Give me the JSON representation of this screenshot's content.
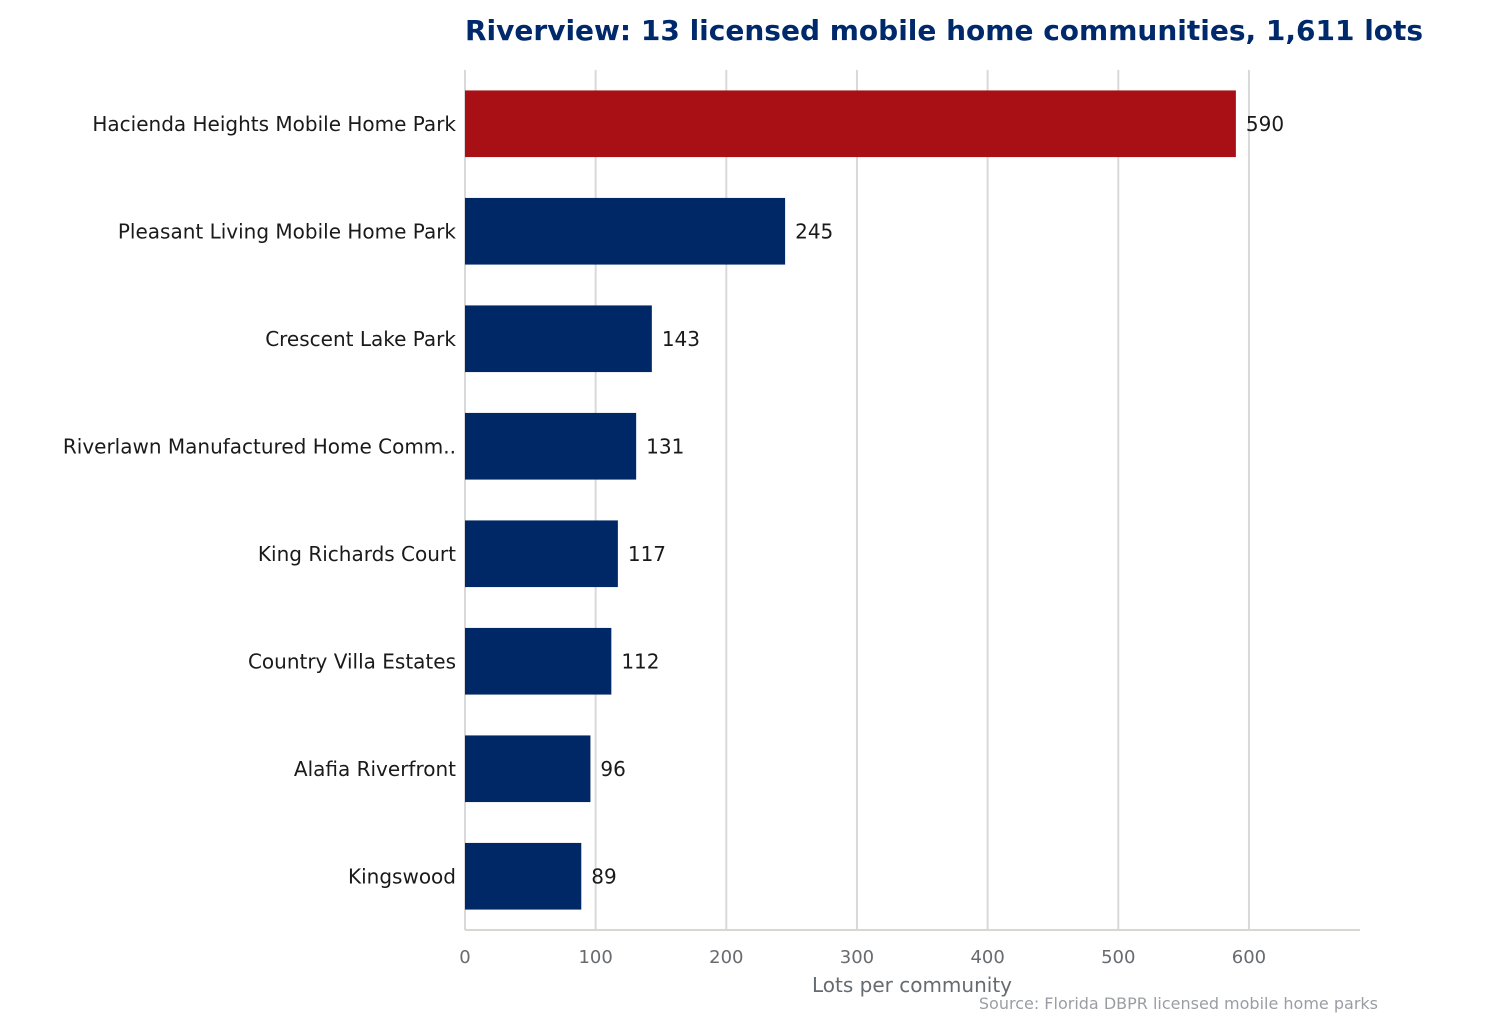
{
  "chart_data": {
    "type": "bar",
    "orientation": "horizontal",
    "title": "Riverview: 13 licensed mobile home communities, 1,611 lots",
    "xlabel": "Lots per community",
    "ylabel": "",
    "source": "Source: Florida DBPR licensed mobile home parks",
    "categories": [
      "Hacienda Heights Mobile Home Park",
      "Pleasant Living Mobile Home Park",
      "Crescent Lake Park",
      "Riverlawn Manufactured Home Comm..",
      "King Richards Court",
      "Country Villa Estates",
      "Alafia Riverfront",
      "Kingswood"
    ],
    "values": [
      590,
      245,
      143,
      131,
      117,
      112,
      96,
      89
    ],
    "value_labels": [
      "590",
      "245",
      "143",
      "131",
      "117",
      "112",
      "96",
      "89"
    ],
    "xlim": [
      0,
      685
    ],
    "xticks": [
      0,
      100,
      200,
      300,
      400,
      500,
      600
    ],
    "xtick_labels": [
      "0",
      "100",
      "200",
      "300",
      "400",
      "500",
      "600"
    ],
    "grid": "vertical",
    "legend": "none",
    "highlight_index": 0,
    "colors": {
      "highlight": "#a81016",
      "bar": "#002766",
      "title": "#00296b"
    }
  }
}
